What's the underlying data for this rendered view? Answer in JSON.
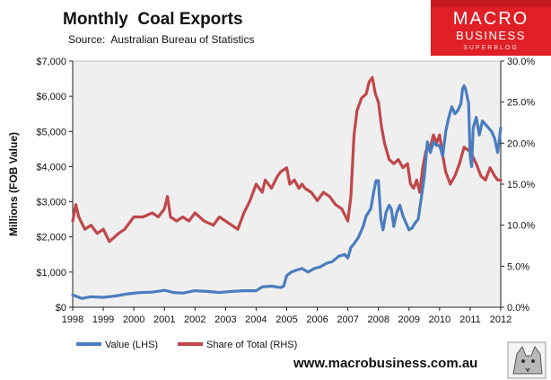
{
  "header": {
    "title": "Monthly  Coal Exports",
    "source": "Source:  Australian Bureau of Statistics"
  },
  "branding": {
    "logo_line1": "MACRO",
    "logo_line2": "BUSINESS",
    "logo_line3": "SUPERBLOG",
    "website": "www.macrobusiness.com.au",
    "logo_color": "#e01f26"
  },
  "chart_data": {
    "type": "line",
    "title": "Monthly  Coal Exports",
    "ylabel_left": "Millions (FOB Value)",
    "ylabel_right": "",
    "xlabel": "",
    "x_range": [
      1998,
      2012
    ],
    "ylim_left": [
      0,
      7000
    ],
    "ylim_right": [
      0,
      30
    ],
    "left_ticks": [
      "$0",
      "$1,000",
      "$2,000",
      "$3,000",
      "$4,000",
      "$5,000",
      "$6,000",
      "$7,000"
    ],
    "left_tick_values": [
      0,
      1000,
      2000,
      3000,
      4000,
      5000,
      6000,
      7000
    ],
    "right_ticks": [
      "0.0%",
      "5.0%",
      "10.0%",
      "15.0%",
      "20.0%",
      "25.0%",
      "30.0%"
    ],
    "right_tick_values": [
      0,
      5,
      10,
      15,
      20,
      25,
      30
    ],
    "x_ticks": [
      "1998",
      "1999",
      "2000",
      "2001",
      "2002",
      "2003",
      "2004",
      "2005",
      "2006",
      "2007",
      "2008",
      "2009",
      "2010",
      "2011",
      "2012"
    ],
    "grid": false,
    "legend_position": "bottom-left",
    "series": [
      {
        "name": "Value (LHS)",
        "axis": "left",
        "color": "#4a7dbf",
        "x": [
          1998.0,
          1998.3,
          1998.6,
          1999.0,
          1999.4,
          1999.8,
          2000.2,
          2000.6,
          2001.0,
          2001.3,
          2001.6,
          2002.0,
          2002.4,
          2002.8,
          2003.2,
          2003.6,
          2004.0,
          2004.2,
          2004.5,
          2004.8,
          2004.9,
          2005.0,
          2005.15,
          2005.3,
          2005.5,
          2005.7,
          2005.9,
          2006.1,
          2006.3,
          2006.5,
          2006.7,
          2006.9,
          2007.0,
          2007.1,
          2007.2,
          2007.35,
          2007.5,
          2007.6,
          2007.75,
          2007.85,
          2007.92,
          2008.0,
          2008.08,
          2008.15,
          2008.25,
          2008.35,
          2008.42,
          2008.5,
          2008.6,
          2008.7,
          2008.8,
          2008.9,
          2009.0,
          2009.1,
          2009.2,
          2009.3,
          2009.4,
          2009.5,
          2009.6,
          2009.7,
          2009.8,
          2009.9,
          2010.0,
          2010.1,
          2010.2,
          2010.3,
          2010.4,
          2010.5,
          2010.6,
          2010.7,
          2010.75,
          2010.8,
          2010.85,
          2010.95,
          2011.0,
          2011.05,
          2011.1,
          2011.2,
          2011.3,
          2011.4,
          2011.5,
          2011.6,
          2011.7,
          2011.8,
          2011.9,
          2012.0
        ],
        "values": [
          350,
          250,
          300,
          280,
          320,
          380,
          420,
          430,
          480,
          420,
          400,
          470,
          450,
          420,
          450,
          470,
          470,
          580,
          600,
          560,
          600,
          900,
          1000,
          1050,
          1100,
          1000,
          1100,
          1150,
          1250,
          1300,
          1450,
          1500,
          1400,
          1700,
          1800,
          2000,
          2300,
          2600,
          2800,
          3300,
          3600,
          3600,
          2500,
          2200,
          2700,
          2900,
          2800,
          2300,
          2700,
          2900,
          2600,
          2400,
          2200,
          2250,
          2400,
          2500,
          3100,
          3700,
          4700,
          4400,
          4700,
          4600,
          4600,
          4300,
          5000,
          5400,
          5700,
          5500,
          5600,
          5800,
          6200,
          6300,
          6200,
          5800,
          4300,
          4000,
          5100,
          5400,
          4900,
          5300,
          5200,
          5100,
          5000,
          4800,
          4400,
          5100
        ]
      },
      {
        "name": "Share of Total (RHS)",
        "axis": "right",
        "color": "#c0474a",
        "x": [
          1998.0,
          1998.1,
          1998.2,
          1998.4,
          1998.6,
          1998.8,
          1999.0,
          1999.2,
          1999.35,
          1999.5,
          1999.7,
          2000.0,
          2000.3,
          2000.6,
          2000.8,
          2001.0,
          2001.1,
          2001.2,
          2001.4,
          2001.6,
          2001.8,
          2002.0,
          2002.3,
          2002.6,
          2002.8,
          2003.0,
          2003.2,
          2003.4,
          2003.6,
          2003.8,
          2004.0,
          2004.2,
          2004.3,
          2004.5,
          2004.7,
          2004.8,
          2005.0,
          2005.1,
          2005.25,
          2005.4,
          2005.5,
          2005.6,
          2005.8,
          2006.0,
          2006.2,
          2006.4,
          2006.6,
          2006.8,
          2007.0,
          2007.1,
          2007.2,
          2007.3,
          2007.45,
          2007.6,
          2007.7,
          2007.8,
          2007.9,
          2008.0,
          2008.1,
          2008.2,
          2008.35,
          2008.5,
          2008.65,
          2008.8,
          2008.95,
          2009.05,
          2009.15,
          2009.25,
          2009.35,
          2009.45,
          2009.55,
          2009.7,
          2009.8,
          2009.9,
          2010.0,
          2010.1,
          2010.2,
          2010.35,
          2010.5,
          2010.65,
          2010.8,
          2011.0,
          2011.2,
          2011.35,
          2011.5,
          2011.65,
          2011.8,
          2011.9,
          2012.0
        ],
        "values": [
          10.5,
          12.5,
          11.0,
          9.5,
          10.0,
          9.0,
          9.5,
          8.0,
          8.5,
          9.0,
          9.5,
          11.0,
          11.0,
          11.5,
          11.0,
          12.0,
          13.5,
          11.0,
          10.5,
          11.0,
          10.5,
          11.5,
          10.5,
          10.0,
          11.0,
          10.5,
          10.0,
          9.5,
          11.5,
          13.0,
          15.0,
          14.0,
          15.5,
          14.5,
          16.0,
          16.5,
          17.0,
          15.0,
          15.5,
          14.5,
          15.0,
          14.5,
          14.0,
          13.0,
          14.0,
          13.5,
          12.5,
          12.0,
          10.5,
          13.5,
          21.0,
          24.0,
          25.5,
          26.0,
          27.5,
          28.0,
          26.0,
          25.0,
          22.0,
          20.0,
          18.0,
          17.5,
          18.0,
          17.0,
          17.5,
          15.0,
          14.5,
          15.5,
          14.0,
          17.0,
          19.0,
          19.5,
          21.0,
          20.0,
          21.0,
          18.5,
          16.5,
          15.0,
          16.0,
          17.5,
          19.5,
          19.0,
          17.5,
          16.0,
          15.5,
          17.0,
          16.0,
          15.5,
          15.5
        ]
      }
    ]
  }
}
